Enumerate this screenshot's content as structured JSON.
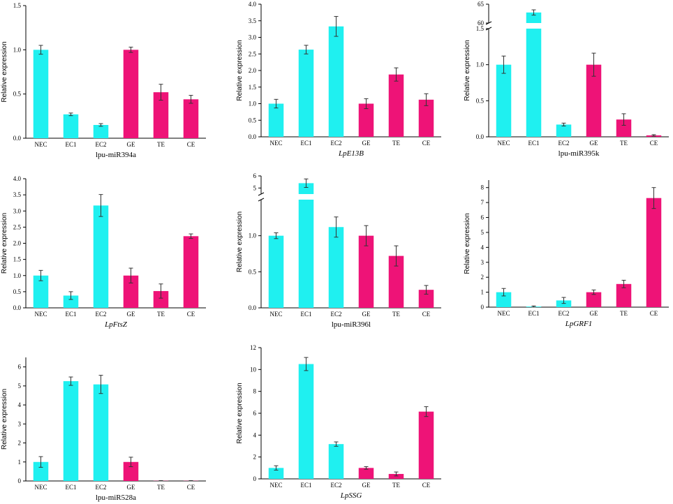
{
  "colors": {
    "cyan": "#1ff0f0",
    "magenta": "#ee1377",
    "axis": "#000000"
  },
  "chart_data": [
    {
      "type": "bar",
      "id": "lpu-miR394a",
      "xlabel": "lpu-miR394a",
      "xlabel_italic": false,
      "ylabel": "Relative expression",
      "categories": [
        "NEC",
        "EC1",
        "EC2",
        "GE",
        "TE",
        "CE"
      ],
      "values": [
        1.0,
        0.27,
        0.15,
        1.0,
        0.52,
        0.44
      ],
      "errors": [
        0.05,
        0.015,
        0.015,
        0.03,
        0.09,
        0.045
      ],
      "bar_colors": [
        "cyan",
        "cyan",
        "cyan",
        "magenta",
        "magenta",
        "magenta"
      ],
      "ylim": [
        0,
        1.5
      ],
      "yticks": [
        0.0,
        0.5,
        1.0,
        1.5
      ],
      "ytick_labels": [
        "0.0",
        "0.5",
        "1.0",
        "1.5"
      ]
    },
    {
      "type": "bar",
      "id": "LpE13B",
      "xlabel": "LpE13B",
      "xlabel_italic": true,
      "ylabel": "Relative expression",
      "categories": [
        "NEC",
        "EC1",
        "EC2",
        "GE",
        "TE",
        "CE"
      ],
      "values": [
        1.0,
        2.63,
        3.33,
        1.0,
        1.88,
        1.12
      ],
      "errors": [
        0.13,
        0.13,
        0.3,
        0.15,
        0.2,
        0.18
      ],
      "bar_colors": [
        "cyan",
        "cyan",
        "cyan",
        "magenta",
        "magenta",
        "magenta"
      ],
      "ylim": [
        0,
        4.0
      ],
      "yticks": [
        0,
        0.5,
        1,
        1.5,
        2,
        2.5,
        3,
        3.5,
        4
      ],
      "ytick_labels": [
        "0.0",
        "0.5",
        "1.0",
        "1.5",
        "2.0",
        "2.5",
        "3.0",
        "3.5",
        "4.0"
      ]
    },
    {
      "type": "bar",
      "id": "lpu-miR395k",
      "xlabel": "lpu-miR395k",
      "xlabel_italic": false,
      "ylabel": "Relative expression",
      "categories": [
        "NEC",
        "EC1",
        "EC2",
        "GE",
        "TE",
        "CE"
      ],
      "values": [
        1.0,
        62.8,
        0.17,
        1.0,
        0.24,
        0.02
      ],
      "errors": [
        0.12,
        0.7,
        0.02,
        0.16,
        0.08,
        0.01
      ],
      "bar_colors": [
        "cyan",
        "cyan",
        "cyan",
        "magenta",
        "magenta",
        "magenta"
      ],
      "ylim": [
        0,
        1.5
      ],
      "axis_break": {
        "lower_max": 1.5,
        "upper_min": 60,
        "upper_max": 65
      },
      "yticks": [
        0,
        0.5,
        1,
        1.5
      ],
      "ytick_labels": [
        "0.0",
        "0.5",
        "1.0",
        "1.5"
      ],
      "upper_yticks": [
        60,
        65
      ],
      "upper_ytick_labels": [
        "60",
        "65"
      ]
    },
    {
      "type": "bar",
      "id": "LpFtsZ",
      "xlabel": "LpFtsZ",
      "xlabel_italic": true,
      "ylabel": "Relative expression",
      "categories": [
        "NEC",
        "EC1",
        "EC2",
        "GE",
        "TE",
        "CE"
      ],
      "values": [
        1.0,
        0.38,
        3.17,
        1.0,
        0.52,
        2.22
      ],
      "errors": [
        0.16,
        0.12,
        0.34,
        0.23,
        0.22,
        0.07
      ],
      "bar_colors": [
        "cyan",
        "cyan",
        "cyan",
        "magenta",
        "magenta",
        "magenta"
      ],
      "ylim": [
        0,
        4.0
      ],
      "yticks": [
        0,
        0.5,
        1,
        1.5,
        2,
        2.5,
        3,
        3.5,
        4
      ],
      "ytick_labels": [
        "0.0",
        "0.5",
        "1.0",
        "1.5",
        "2.0",
        "2.5",
        "3.0",
        "3.5",
        "4.0"
      ]
    },
    {
      "type": "bar",
      "id": "lpu-miR396l",
      "xlabel": "lpu-miR396l",
      "xlabel_italic": false,
      "ylabel": "Relative expression",
      "categories": [
        "NEC",
        "EC1",
        "EC2",
        "GE",
        "TE",
        "CE"
      ],
      "values": [
        1.0,
        5.4,
        1.12,
        1.0,
        0.72,
        0.25
      ],
      "errors": [
        0.04,
        0.35,
        0.14,
        0.14,
        0.14,
        0.06
      ],
      "bar_colors": [
        "cyan",
        "cyan",
        "cyan",
        "magenta",
        "magenta",
        "magenta"
      ],
      "ylim": [
        0,
        1.5
      ],
      "axis_break": {
        "lower_max": 1.5,
        "upper_min": 4.5,
        "upper_max": 6
      },
      "yticks": [
        0,
        0.5,
        1.0
      ],
      "ytick_labels": [
        "0.0",
        "0.5",
        "1.0"
      ],
      "upper_yticks": [
        5,
        6
      ],
      "upper_ytick_labels": [
        "5",
        "6"
      ]
    },
    {
      "type": "bar",
      "id": "LpGRF1",
      "xlabel": "LpGRF1",
      "xlabel_italic": true,
      "ylabel": "Relative expression",
      "categories": [
        "NEC",
        "EC1",
        "EC2",
        "GE",
        "TE",
        "CE"
      ],
      "values": [
        1.0,
        0.04,
        0.45,
        1.0,
        1.55,
        7.3
      ],
      "errors": [
        0.25,
        0.04,
        0.2,
        0.15,
        0.25,
        0.7
      ],
      "bar_colors": [
        "cyan",
        "cyan",
        "cyan",
        "magenta",
        "magenta",
        "magenta"
      ],
      "ylim": [
        0,
        8.5
      ],
      "yticks": [
        0,
        1,
        2,
        3,
        4,
        5,
        6,
        7,
        8
      ],
      "ytick_labels": [
        "0",
        "1",
        "2",
        "3",
        "4",
        "5",
        "6",
        "7",
        "8"
      ]
    },
    {
      "type": "bar",
      "id": "lpu-miR528a",
      "xlabel": "lpu-miR528a",
      "xlabel_italic": false,
      "ylabel": "Relative expression",
      "categories": [
        "NEC",
        "EC1",
        "EC2",
        "GE",
        "TE",
        "CE"
      ],
      "values": [
        1.0,
        5.25,
        5.08,
        1.0,
        0.01,
        0.01
      ],
      "errors": [
        0.28,
        0.22,
        0.48,
        0.25,
        0.01,
        0.01
      ],
      "bar_colors": [
        "cyan",
        "cyan",
        "cyan",
        "magenta",
        "magenta",
        "magenta"
      ],
      "ylim": [
        0,
        6.5
      ],
      "yticks": [
        0,
        1,
        2,
        3,
        4,
        5,
        6
      ],
      "ytick_labels": [
        "0",
        "1",
        "2",
        "3",
        "4",
        "5",
        "6"
      ]
    },
    {
      "type": "bar",
      "id": "LpSSG",
      "xlabel": "LpSSG",
      "xlabel_italic": true,
      "ylabel": "Relative expression",
      "categories": [
        "NEC",
        "EC1",
        "EC2",
        "GE",
        "TE",
        "CE"
      ],
      "values": [
        1.0,
        10.5,
        3.18,
        1.0,
        0.45,
        6.15
      ],
      "errors": [
        0.2,
        0.6,
        0.2,
        0.12,
        0.18,
        0.45
      ],
      "bar_colors": [
        "cyan",
        "cyan",
        "cyan",
        "magenta",
        "magenta",
        "magenta"
      ],
      "ylim": [
        0,
        12
      ],
      "yticks": [
        0,
        2,
        4,
        6,
        8,
        10,
        12
      ],
      "ytick_labels": [
        "0",
        "2",
        "4",
        "6",
        "8",
        "10",
        "12"
      ]
    }
  ]
}
